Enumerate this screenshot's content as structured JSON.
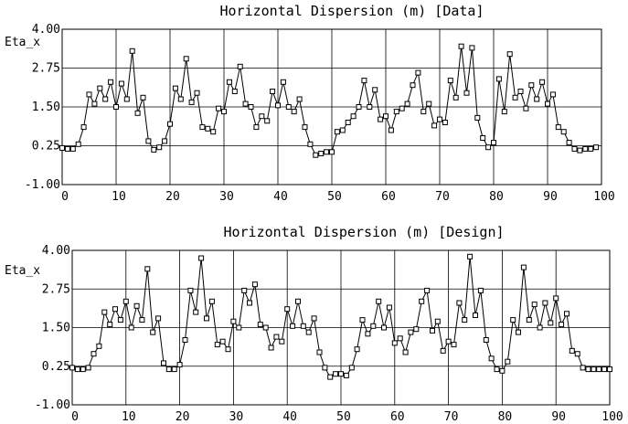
{
  "chart_data": [
    {
      "type": "line",
      "title": "Horizontal Dispersion (m) [Data]",
      "ylabel": "Eta_x",
      "xlabel": "",
      "xlim": [
        0,
        100
      ],
      "ylim": [
        -1.0,
        4.0
      ],
      "xticks": [
        "0",
        "10",
        "20",
        "30",
        "40",
        "50",
        "60",
        "70",
        "80",
        "90",
        "100"
      ],
      "yticks": [
        "-1.00",
        "0.25",
        "1.50",
        "2.75",
        "4.00"
      ],
      "grid": true,
      "x": [
        0,
        1,
        2,
        3,
        4,
        5,
        6,
        7,
        8,
        9,
        10,
        11,
        12,
        13,
        14,
        15,
        16,
        17,
        18,
        19,
        20,
        21,
        22,
        23,
        24,
        25,
        26,
        27,
        28,
        29,
        30,
        31,
        32,
        33,
        34,
        35,
        36,
        37,
        38,
        39,
        40,
        41,
        42,
        43,
        44,
        45,
        46,
        47,
        48,
        49,
        50,
        51,
        52,
        53,
        54,
        55,
        56,
        57,
        58,
        59,
        60,
        61,
        62,
        63,
        64,
        65,
        66,
        67,
        68,
        69,
        70,
        71,
        72,
        73,
        74,
        75,
        76,
        77,
        78,
        79,
        80,
        81,
        82,
        83,
        84,
        85,
        86,
        87,
        88,
        89,
        90,
        91,
        92,
        93,
        94,
        95,
        96,
        97,
        98,
        99
      ],
      "values": [
        0.18,
        0.15,
        0.15,
        0.3,
        0.85,
        1.9,
        1.6,
        2.1,
        1.75,
        2.3,
        1.5,
        2.25,
        1.75,
        3.3,
        1.3,
        1.8,
        0.4,
        0.12,
        0.2,
        0.4,
        0.95,
        2.1,
        1.75,
        3.05,
        1.65,
        1.95,
        0.85,
        0.8,
        0.7,
        1.45,
        1.35,
        2.3,
        2.0,
        2.8,
        1.6,
        1.5,
        0.85,
        1.2,
        1.05,
        2.0,
        1.55,
        2.3,
        1.5,
        1.35,
        1.75,
        0.85,
        0.3,
        -0.05,
        0.0,
        0.05,
        0.05,
        0.7,
        0.75,
        1.0,
        1.2,
        1.5,
        2.35,
        1.5,
        2.05,
        1.1,
        1.2,
        0.75,
        1.35,
        1.45,
        1.6,
        2.2,
        2.6,
        1.35,
        1.6,
        0.9,
        1.1,
        1.0,
        2.35,
        1.8,
        3.45,
        1.95,
        3.4,
        1.15,
        0.5,
        0.2,
        0.35,
        2.4,
        1.35,
        3.2,
        1.8,
        2.0,
        1.45,
        2.2,
        1.75,
        2.3,
        1.6,
        1.9,
        0.85,
        0.7,
        0.35,
        0.15,
        0.1,
        0.15,
        0.15,
        0.2
      ]
    },
    {
      "type": "line",
      "title": "Horizontal Dispersion (m) [Design]",
      "ylabel": "Eta_x",
      "xlabel": "",
      "xlim": [
        0,
        100
      ],
      "ylim": [
        -1.0,
        4.0
      ],
      "xticks": [
        "0",
        "10",
        "20",
        "30",
        "40",
        "50",
        "60",
        "70",
        "80",
        "90",
        "100"
      ],
      "yticks": [
        "-1.00",
        "0.25",
        "1.50",
        "2.75",
        "4.00"
      ],
      "grid": true,
      "x": [
        0,
        1,
        2,
        3,
        4,
        5,
        6,
        7,
        8,
        9,
        10,
        11,
        12,
        13,
        14,
        15,
        16,
        17,
        18,
        19,
        20,
        21,
        22,
        23,
        24,
        25,
        26,
        27,
        28,
        29,
        30,
        31,
        32,
        33,
        34,
        35,
        36,
        37,
        38,
        39,
        40,
        41,
        42,
        43,
        44,
        45,
        46,
        47,
        48,
        49,
        50,
        51,
        52,
        53,
        54,
        55,
        56,
        57,
        58,
        59,
        60,
        61,
        62,
        63,
        64,
        65,
        66,
        67,
        68,
        69,
        70,
        71,
        72,
        73,
        74,
        75,
        76,
        77,
        78,
        79,
        80,
        81,
        82,
        83,
        84,
        85,
        86,
        87,
        88,
        89,
        90,
        91,
        92,
        93,
        94,
        95,
        96,
        97,
        98,
        99,
        100
      ],
      "values": [
        0.2,
        0.15,
        0.15,
        0.2,
        0.65,
        0.9,
        2.0,
        1.6,
        2.1,
        1.75,
        2.35,
        1.5,
        2.2,
        1.75,
        3.4,
        1.35,
        1.8,
        0.35,
        0.15,
        0.15,
        0.3,
        1.1,
        2.7,
        2.0,
        3.75,
        1.8,
        2.35,
        0.95,
        1.05,
        0.8,
        1.7,
        1.5,
        2.7,
        2.3,
        2.9,
        1.6,
        1.5,
        0.85,
        1.2,
        1.05,
        2.1,
        1.55,
        2.35,
        1.55,
        1.35,
        1.8,
        0.7,
        0.2,
        -0.1,
        0.0,
        0.0,
        -0.05,
        0.2,
        0.8,
        1.75,
        1.3,
        1.55,
        2.35,
        1.5,
        2.15,
        1.0,
        1.15,
        0.7,
        1.35,
        1.45,
        2.35,
        2.7,
        1.4,
        1.7,
        0.75,
        1.05,
        0.95,
        2.3,
        1.75,
        3.8,
        1.9,
        2.7,
        1.1,
        0.5,
        0.15,
        0.1,
        0.4,
        1.75,
        1.35,
        3.45,
        1.75,
        2.25,
        1.5,
        2.3,
        1.65,
        2.45,
        1.6,
        1.95,
        0.75,
        0.65,
        0.2,
        0.15,
        0.15,
        0.15,
        0.15,
        0.15
      ]
    }
  ]
}
